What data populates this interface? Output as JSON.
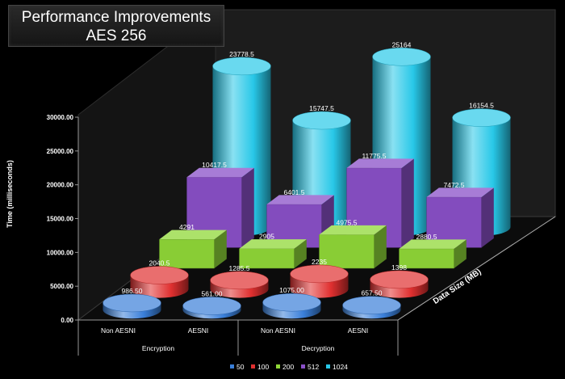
{
  "chart_data": {
    "type": "bar",
    "title": "Performance Improvements",
    "subtitle": "AES 256",
    "ylabel": "Time (milliseconds)",
    "zlabel": "Data Size (MB)",
    "ylim": [
      0,
      30000
    ],
    "yticks": [
      "0.00",
      "5000.00",
      "10000.00",
      "15000.00",
      "20000.00",
      "25000.00",
      "30000.00"
    ],
    "categories": [
      "Non AESNI",
      "AESNI",
      "Non AESNI",
      "AESNI"
    ],
    "groups": [
      {
        "label": "Encryption",
        "categories": [
          "Non AESNI",
          "AESNI"
        ]
      },
      {
        "label": "Decryption",
        "categories": [
          "Non AESNI",
          "AESNI"
        ]
      }
    ],
    "legend_position": "bottom-right",
    "grid": false,
    "series": [
      {
        "name": "50",
        "color": "#3a7fd9",
        "shape": "cylinder",
        "values": [
          986.5,
          561.0,
          1075.0,
          657.5
        ],
        "labels": [
          "986.50",
          "561.00",
          "1075.00",
          "657.50"
        ]
      },
      {
        "name": "100",
        "color": "#e03030",
        "shape": "cylinder",
        "values": [
          2040.5,
          1285.5,
          2235,
          1398
        ],
        "labels": [
          "2040.5",
          "1285.5",
          "2235",
          "1398"
        ]
      },
      {
        "name": "200",
        "color": "#90d838",
        "shape": "box",
        "values": [
          4291,
          2905,
          4975.5,
          2880.5
        ],
        "labels": [
          "4291",
          "2905",
          "4975.5",
          "2880.5"
        ]
      },
      {
        "name": "512",
        "color": "#8a50c8",
        "shape": "box",
        "values": [
          10417.5,
          6401.5,
          11775.5,
          7472.5
        ],
        "labels": [
          "10417.5",
          "6401.5",
          "11775.5",
          "7472.5"
        ]
      },
      {
        "name": "1024",
        "color": "#28c8e8",
        "shape": "cylinder",
        "values": [
          23778.5,
          15747.5,
          25164,
          16154.5
        ],
        "labels": [
          "23778.5",
          "15747.5",
          "25164",
          "16154.5"
        ]
      }
    ]
  }
}
